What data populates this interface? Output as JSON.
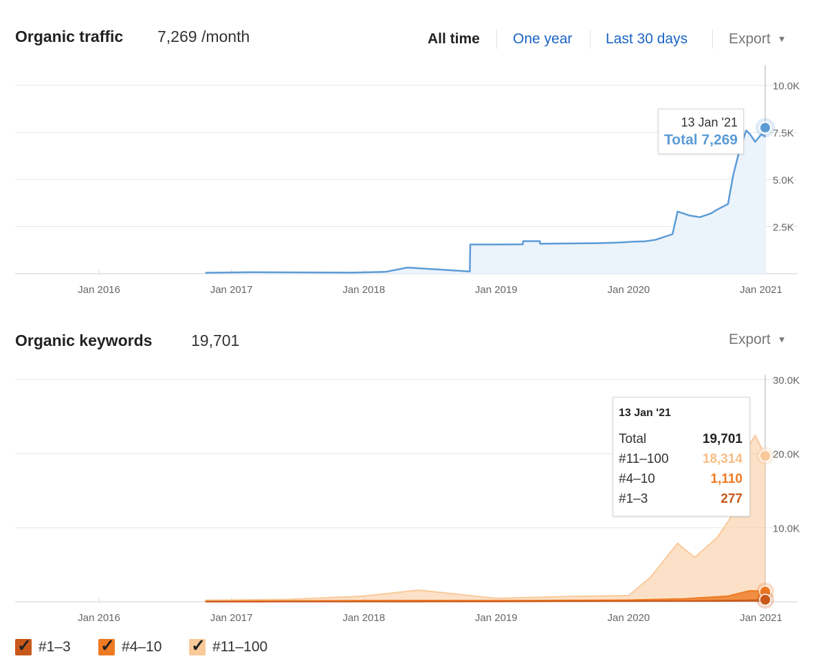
{
  "traffic": {
    "title": "Organic traffic",
    "value": "7,269 /month",
    "tabs": [
      "All time",
      "One year",
      "Last 30 days"
    ],
    "export_label": "Export",
    "tooltip": {
      "date": "13 Jan '21",
      "total": "Total 7,269"
    }
  },
  "keywords": {
    "title": "Organic keywords",
    "value": "19,701",
    "export_label": "Export",
    "tooltip": {
      "date": "13 Jan '21",
      "rows": [
        {
          "label": "Total",
          "value": "19,701",
          "color": "#222222"
        },
        {
          "label": "#11–100",
          "value": "18,314",
          "color": "#f7be85"
        },
        {
          "label": "#4–10",
          "value": "1,110",
          "color": "#ee7a22"
        },
        {
          "label": "#1–3",
          "value": "277",
          "color": "#c8581a"
        }
      ]
    }
  },
  "legend": [
    {
      "label": "#1–3",
      "color": "#c8581a"
    },
    {
      "label": "#4–10",
      "color": "#ee7a22"
    },
    {
      "label": "#11–100",
      "color": "#f9c99a"
    }
  ],
  "colors": {
    "traffic": "#5b9bd5",
    "traffic_fill": "#ebf3fb",
    "k1": "#c8581a",
    "k2": "#ee7a22",
    "k3": "#f9c99a"
  },
  "chart_data": [
    {
      "type": "area",
      "title": "Organic traffic",
      "x_ticks": [
        "Jan 2016",
        "Jan 2017",
        "Jan 2018",
        "Jan 2019",
        "Jan 2020",
        "Jan 2021"
      ],
      "y_ticks": [
        "2.5K",
        "5.0K",
        "7.5K",
        "10.0K"
      ],
      "ylim": [
        0,
        10000
      ],
      "grid": true,
      "series": [
        {
          "x": [
            "2016-10-20",
            "2017-03-01",
            "2017-12-01",
            "2018-03-01",
            "2018-05-01",
            "2018-10-20",
            "2018-10-21",
            "2019-01-01",
            "2019-03-15",
            "2019-03-16",
            "2019-05-01",
            "2019-05-02",
            "2019-10-01",
            "2019-12-01",
            "2020-01-15",
            "2020-02-15",
            "2020-03-15",
            "2020-05-01",
            "2020-05-15",
            "2020-06-15",
            "2020-07-15",
            "2020-08-15",
            "2020-09-01",
            "2020-10-01",
            "2020-10-15",
            "2020-11-01",
            "2020-11-20",
            "2020-12-01",
            "2020-12-15",
            "2021-01-01",
            "2021-01-13"
          ],
          "values": [
            50,
            80,
            60,
            100,
            330,
            120,
            1550,
            1550,
            1560,
            1730,
            1730,
            1590,
            1620,
            1650,
            1700,
            1720,
            1800,
            2100,
            3300,
            3100,
            3000,
            3200,
            3400,
            3700,
            5200,
            6500,
            7600,
            7400,
            7000,
            7400,
            7269
          ]
        }
      ]
    },
    {
      "type": "area",
      "title": "Organic keywords",
      "x_ticks": [
        "Jan 2016",
        "Jan 2017",
        "Jan 2018",
        "Jan 2019",
        "Jan 2020",
        "Jan 2021"
      ],
      "y_ticks": [
        "10.0K",
        "20.0K",
        "30.0K"
      ],
      "ylim": [
        0,
        30000
      ],
      "grid": true,
      "legend": [
        "#1–3",
        "#4–10",
        "#11–100"
      ],
      "series": [
        {
          "name": "#1–3",
          "x": [
            "2016-10-20",
            "2019-01-01",
            "2020-06-01",
            "2020-12-01",
            "2021-01-13"
          ],
          "values": [
            10,
            40,
            100,
            200,
            277
          ]
        },
        {
          "name": "#4–10",
          "x": [
            "2016-10-20",
            "2018-05-01",
            "2019-01-01",
            "2020-01-01",
            "2020-06-01",
            "2020-10-01",
            "2020-12-01",
            "2021-01-13"
          ],
          "values": [
            60,
            150,
            120,
            150,
            300,
            600,
            1300,
            1110
          ]
        },
        {
          "name": "#11–100",
          "x": [
            "2016-10-20",
            "2017-06-01",
            "2018-01-01",
            "2018-06-01",
            "2019-01-01",
            "2019-07-01",
            "2020-01-01",
            "2020-03-01",
            "2020-05-15",
            "2020-07-01",
            "2020-09-01",
            "2020-10-15",
            "2020-11-15",
            "2020-12-15",
            "2021-01-13"
          ],
          "values": [
            150,
            200,
            600,
            1400,
            300,
            500,
            600,
            3000,
            7500,
            5500,
            8000,
            11000,
            18500,
            21000,
            18314
          ]
        }
      ]
    }
  ]
}
